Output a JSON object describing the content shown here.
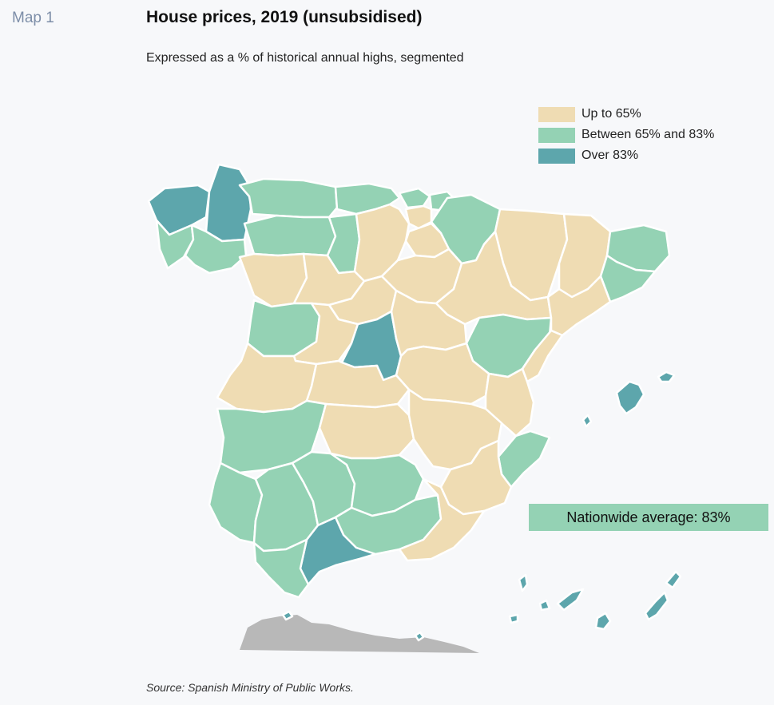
{
  "header": {
    "map_label": "Map 1",
    "title": "House prices, 2019 (unsubsidised)",
    "subtitle": "Expressed as a % of historical annual highs, segmented"
  },
  "legend": [
    {
      "label": "Up to 65%",
      "color": "#efdcb3"
    },
    {
      "label": "Between 65% and 83%",
      "color": "#94d2b4"
    },
    {
      "label": "Over 83%",
      "color": "#5da6ac"
    }
  ],
  "colors": {
    "low": "#efdcb3",
    "mid": "#94d2b4",
    "high": "#5da6ac",
    "no_data": "#b8b8b8",
    "callout_bg": "#94d2b4"
  },
  "callout": {
    "text": "Nationwide average: 83%",
    "color": "#94d2b4"
  },
  "source": "Source: Spanish Ministry of Public Works."
}
